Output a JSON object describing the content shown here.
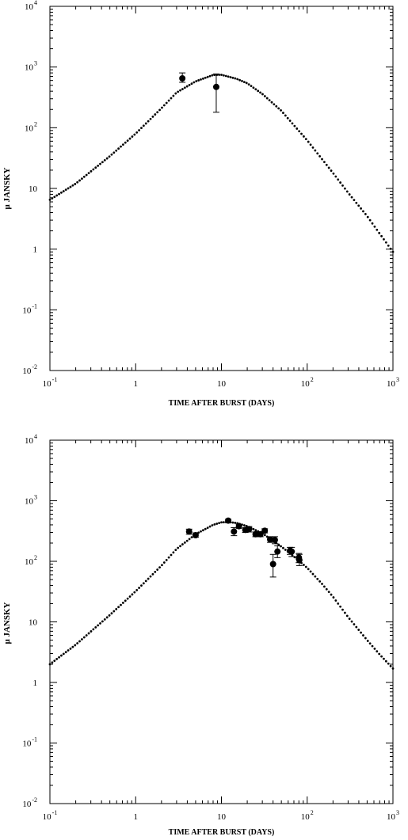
{
  "chart_data": [
    {
      "type": "scatter",
      "xlabel": "TIME AFTER BURST (DAYS)",
      "ylabel": "μ JANSKY",
      "xscale": "log",
      "yscale": "log",
      "xlim": [
        0.1,
        1000
      ],
      "ylim": [
        0.01,
        10000
      ],
      "x_ticks": [
        {
          "base": "10",
          "exp": "-1"
        },
        {
          "base": "1",
          "exp": ""
        },
        {
          "base": "10",
          "exp": ""
        },
        {
          "base": "10",
          "exp": "2"
        },
        {
          "base": "10",
          "exp": "3"
        }
      ],
      "y_ticks": [
        {
          "base": "10",
          "exp": "-2"
        },
        {
          "base": "10",
          "exp": "-1"
        },
        {
          "base": "1",
          "exp": ""
        },
        {
          "base": "10",
          "exp": ""
        },
        {
          "base": "10",
          "exp": "2"
        },
        {
          "base": "10",
          "exp": "3"
        },
        {
          "base": "10",
          "exp": "4"
        }
      ],
      "points": [
        {
          "x": 3.5,
          "y": 650,
          "ylo": 560,
          "yhi": 800
        },
        {
          "x": 8.7,
          "y": 470,
          "ylo": 180,
          "yhi": 770
        }
      ],
      "model_curve": {
        "style": "dotted",
        "x": [
          0.1,
          0.2,
          0.5,
          1,
          2,
          3,
          5,
          8,
          10,
          15,
          20,
          30,
          50,
          70,
          100,
          150,
          200,
          300,
          500,
          700,
          1000
        ],
        "y": [
          6.5,
          12,
          34,
          80,
          210,
          380,
          580,
          740,
          745,
          640,
          540,
          360,
          190,
          110,
          62,
          30,
          18,
          8.5,
          3.5,
          1.8,
          0.9
        ]
      }
    },
    {
      "type": "scatter",
      "xlabel": "TIME AFTER BURST (DAYS)",
      "ylabel": "μ JANSKY",
      "xscale": "log",
      "yscale": "log",
      "xlim": [
        0.1,
        1000
      ],
      "ylim": [
        0.01,
        10000
      ],
      "x_ticks": [
        {
          "base": "10",
          "exp": "-1"
        },
        {
          "base": "1",
          "exp": ""
        },
        {
          "base": "10",
          "exp": ""
        },
        {
          "base": "10",
          "exp": "2"
        },
        {
          "base": "10",
          "exp": "3"
        }
      ],
      "y_ticks": [
        {
          "base": "10",
          "exp": "-2"
        },
        {
          "base": "10",
          "exp": "-1"
        },
        {
          "base": "1",
          "exp": ""
        },
        {
          "base": "10",
          "exp": ""
        },
        {
          "base": "10",
          "exp": "2"
        },
        {
          "base": "10",
          "exp": "3"
        },
        {
          "base": "10",
          "exp": "4"
        }
      ],
      "points": [
        {
          "x": 4.2,
          "y": 310,
          "ylo": 280,
          "yhi": 340
        },
        {
          "x": 5.0,
          "y": 270,
          "ylo": 250,
          "yhi": 295
        },
        {
          "x": 12.0,
          "y": 470,
          "ylo": 445,
          "yhi": 495
        },
        {
          "x": 14.0,
          "y": 310,
          "ylo": 265,
          "yhi": 360
        },
        {
          "x": 16.0,
          "y": 380,
          "ylo": 350,
          "yhi": 410
        },
        {
          "x": 19.0,
          "y": 330,
          "ylo": 300,
          "yhi": 360
        },
        {
          "x": 21.0,
          "y": 340,
          "ylo": 305,
          "yhi": 375
        },
        {
          "x": 25.0,
          "y": 280,
          "ylo": 255,
          "yhi": 305
        },
        {
          "x": 28.5,
          "y": 280,
          "ylo": 255,
          "yhi": 305
        },
        {
          "x": 32.0,
          "y": 320,
          "ylo": 295,
          "yhi": 345
        },
        {
          "x": 37.0,
          "y": 230,
          "ylo": 205,
          "yhi": 255
        },
        {
          "x": 40.0,
          "y": 90,
          "ylo": 55,
          "yhi": 130
        },
        {
          "x": 42.0,
          "y": 225,
          "ylo": 195,
          "yhi": 255
        },
        {
          "x": 45.0,
          "y": 145,
          "ylo": 115,
          "yhi": 180
        },
        {
          "x": 63.0,
          "y": 150,
          "ylo": 130,
          "yhi": 170
        },
        {
          "x": 66.0,
          "y": 145,
          "ylo": 120,
          "yhi": 170
        },
        {
          "x": 80.0,
          "y": 115,
          "ylo": 95,
          "yhi": 135
        },
        {
          "x": 81.0,
          "y": 105,
          "ylo": 85,
          "yhi": 130
        }
      ],
      "model_curve": {
        "style": "dotted",
        "x": [
          0.1,
          0.2,
          0.5,
          1,
          2,
          3,
          5,
          8,
          10,
          12,
          15,
          20,
          30,
          50,
          70,
          100,
          150,
          200,
          300,
          500,
          700,
          1000
        ],
        "y": [
          2.0,
          4.2,
          13,
          32,
          85,
          160,
          280,
          400,
          440,
          445,
          430,
          380,
          290,
          175,
          120,
          78,
          42,
          26,
          12,
          5.0,
          2.9,
          1.7
        ]
      }
    }
  ]
}
